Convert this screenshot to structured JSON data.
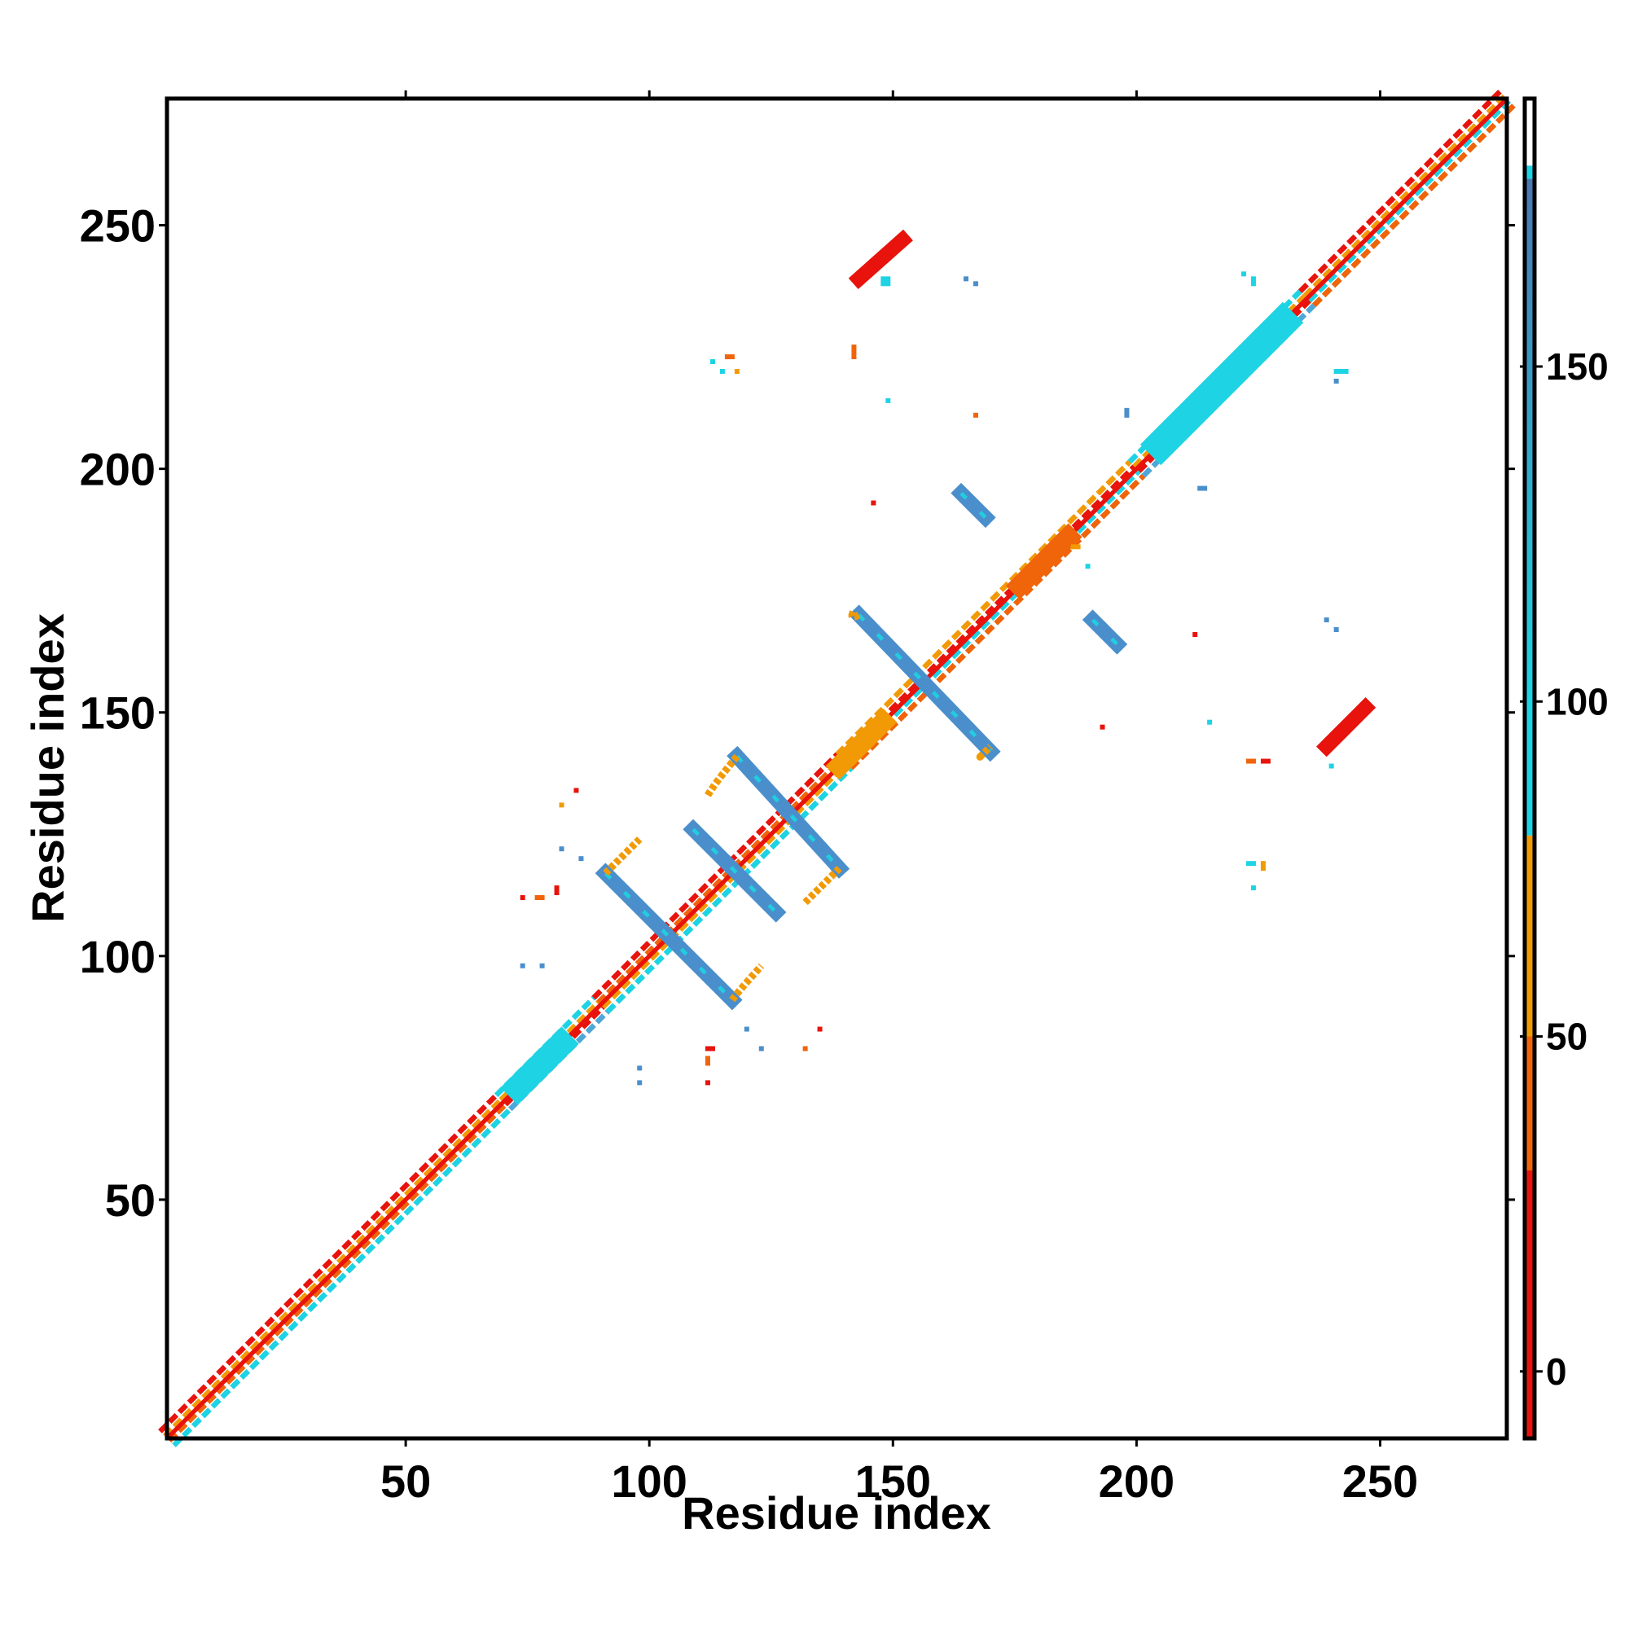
{
  "chart_data": {
    "type": "heatmap",
    "title": "",
    "xlabel": "Residue index",
    "ylabel": "Residue index",
    "xlim": [
      1,
      276
    ],
    "ylim": [
      1,
      276
    ],
    "x_ticks": [
      50,
      100,
      150,
      200,
      250
    ],
    "y_ticks": [
      50,
      100,
      150,
      200,
      250
    ],
    "colorbar": {
      "range": [
        -10,
        190
      ],
      "ticks": [
        0,
        50,
        100,
        150
      ],
      "bands": [
        {
          "from": -10,
          "to": 30,
          "color": "#e8130c"
        },
        {
          "from": 30,
          "to": 50,
          "color": "#f0640a"
        },
        {
          "from": 50,
          "to": 80,
          "color": "#f29a05"
        },
        {
          "from": 80,
          "to": 180,
          "color": "#1ed3e3"
        },
        {
          "from": 180,
          "to": 190,
          "color": "#ffffff"
        }
      ],
      "upper_gradient": {
        "from": 100,
        "to": 178,
        "start_color": "#1ed3e3",
        "end_color": "#4a78b0"
      }
    },
    "diagonal": {
      "from": 1,
      "to": 276,
      "width": 3
    },
    "diagonal_sections": [
      {
        "from": 1,
        "to": 70,
        "colors": [
          "#e8130c",
          "#f29a05",
          "#f0640a",
          "#1ed3e3"
        ]
      },
      {
        "from": 70,
        "to": 90,
        "colors": [
          "#1ed3e3",
          "#f29a05",
          "#e8130c",
          "#4fa7d8"
        ]
      },
      {
        "from": 90,
        "to": 140,
        "colors": [
          "#e8130c",
          "#f0640a",
          "#f29a05",
          "#1ed3e3"
        ]
      },
      {
        "from": 140,
        "to": 200,
        "colors": [
          "#f29a05",
          "#e8130c",
          "#1ed3e3",
          "#f0640a"
        ]
      },
      {
        "from": 200,
        "to": 235,
        "colors": [
          "#1ed3e3",
          "#f29a05",
          "#e8130c",
          "#4fa7d8"
        ]
      },
      {
        "from": 235,
        "to": 276,
        "colors": [
          "#e8130c",
          "#f29a05",
          "#1ed3e3",
          "#f0640a"
        ]
      }
    ],
    "series": [
      {
        "type": "antiparallel",
        "x1": 91,
        "y1": 117,
        "x2": 117,
        "y2": 91,
        "color": "#4a8fcc",
        "width": 3
      },
      {
        "type": "antiparallel",
        "x1": 109,
        "y1": 126,
        "x2": 126,
        "y2": 109,
        "color": "#4a8fcc",
        "width": 3
      },
      {
        "type": "antiparallel",
        "x1": 118,
        "y1": 141,
        "x2": 139,
        "y2": 118,
        "color": "#4a8fcc",
        "width": 3
      },
      {
        "type": "antiparallel",
        "x1": 143,
        "y1": 170,
        "x2": 170,
        "y2": 142,
        "color": "#4a8fcc",
        "width": 3
      },
      {
        "type": "antiparallel",
        "x1": 164,
        "y1": 195,
        "x2": 169,
        "y2": 190,
        "color": "#4a8fcc",
        "width": 3
      },
      {
        "type": "antiparallel",
        "x1": 191,
        "y1": 169,
        "x2": 196,
        "y2": 164,
        "color": "#4a8fcc",
        "width": 3
      },
      {
        "type": "parallel",
        "x1": 143,
        "y1": 239,
        "x2": 152,
        "y2": 247,
        "color": "#e8130c",
        "width": 3
      },
      {
        "type": "parallel",
        "x1": 239,
        "y1": 143,
        "x2": 247,
        "y2": 151,
        "color": "#e8130c",
        "width": 3
      },
      {
        "type": "diagonal-band",
        "x1": 73,
        "y1": 73,
        "x2": 82,
        "y2": 82,
        "color": "#1ed3e3",
        "width": 5
      },
      {
        "type": "diagonal-band",
        "x1": 205,
        "y1": 205,
        "x2": 230,
        "y2": 230,
        "color": "#1ed3e3",
        "width": 6
      },
      {
        "type": "diagonal-band",
        "x1": 176,
        "y1": 176,
        "x2": 186,
        "y2": 186,
        "color": "#f0640a",
        "width": 4
      },
      {
        "type": "diagonal-band",
        "x1": 139,
        "y1": 139,
        "x2": 148,
        "y2": 148,
        "color": "#f29a05",
        "width": 4
      },
      {
        "type": "arc",
        "x1": 112,
        "y1": 133,
        "x2": 118,
        "y2": 141,
        "color": "#f29a05",
        "width": 1.5
      },
      {
        "type": "arc",
        "x1": 132,
        "y1": 111,
        "x2": 139,
        "y2": 118,
        "color": "#f29a05",
        "width": 1.5
      },
      {
        "type": "arc",
        "x1": 91,
        "y1": 117,
        "x2": 98,
        "y2": 124,
        "color": "#f29a05",
        "width": 1.5
      },
      {
        "type": "arc",
        "x1": 117,
        "y1": 91,
        "x2": 123,
        "y2": 98,
        "color": "#f29a05",
        "width": 1.5
      },
      {
        "type": "arc",
        "x1": 143,
        "y1": 170,
        "x2": 142,
        "y2": 171,
        "color": "#f29a05",
        "width": 1.5
      },
      {
        "type": "arc",
        "x1": 168,
        "y1": 141,
        "x2": 170,
        "y2": 143,
        "color": "#f29a05",
        "width": 1.5
      }
    ],
    "points": [
      {
        "x": 148,
        "y": 238,
        "color": "#1ed3e3",
        "w": 2,
        "h": 2
      },
      {
        "x": 165,
        "y": 239,
        "color": "#4a8fcc",
        "w": 1,
        "h": 1
      },
      {
        "x": 167,
        "y": 238,
        "color": "#4a8fcc",
        "w": 1,
        "h": 1
      },
      {
        "x": 116,
        "y": 223,
        "color": "#f0640a",
        "w": 2,
        "h": 1
      },
      {
        "x": 113,
        "y": 222,
        "color": "#1ed3e3",
        "w": 1,
        "h": 1
      },
      {
        "x": 118,
        "y": 220,
        "color": "#f29a05",
        "w": 1,
        "h": 1
      },
      {
        "x": 115,
        "y": 220,
        "color": "#1ed3e3",
        "w": 1,
        "h": 1
      },
      {
        "x": 142,
        "y": 223,
        "color": "#f0640a",
        "w": 1,
        "h": 3
      },
      {
        "x": 149,
        "y": 214,
        "color": "#1ed3e3",
        "w": 1,
        "h": 1
      },
      {
        "x": 167,
        "y": 211,
        "color": "#f0640a",
        "w": 1,
        "h": 1
      },
      {
        "x": 222,
        "y": 240,
        "color": "#1ed3e3",
        "w": 1,
        "h": 1
      },
      {
        "x": 224,
        "y": 238,
        "color": "#1ed3e3",
        "w": 1,
        "h": 2
      },
      {
        "x": 241,
        "y": 220,
        "color": "#1ed3e3",
        "w": 3,
        "h": 1
      },
      {
        "x": 241,
        "y": 218,
        "color": "#4a8fcc",
        "w": 1,
        "h": 1
      },
      {
        "x": 146,
        "y": 193,
        "color": "#e8130c",
        "w": 1,
        "h": 1
      },
      {
        "x": 213,
        "y": 196,
        "color": "#4a8fcc",
        "w": 2,
        "h": 1
      },
      {
        "x": 198,
        "y": 211,
        "color": "#4a8fcc",
        "w": 1,
        "h": 2
      },
      {
        "x": 187,
        "y": 184,
        "color": "#f29a05",
        "w": 2,
        "h": 1
      },
      {
        "x": 190,
        "y": 180,
        "color": "#1ed3e3",
        "w": 1,
        "h": 1
      },
      {
        "x": 239,
        "y": 169,
        "color": "#4a8fcc",
        "w": 1,
        "h": 1
      },
      {
        "x": 241,
        "y": 167,
        "color": "#4a8fcc",
        "w": 1,
        "h": 1
      },
      {
        "x": 212,
        "y": 166,
        "color": "#e8130c",
        "w": 1,
        "h": 1
      },
      {
        "x": 215,
        "y": 148,
        "color": "#1ed3e3",
        "w": 1,
        "h": 1
      },
      {
        "x": 193,
        "y": 147,
        "color": "#e8130c",
        "w": 1,
        "h": 1
      },
      {
        "x": 223,
        "y": 140,
        "color": "#f0640a",
        "w": 2,
        "h": 1
      },
      {
        "x": 226,
        "y": 140,
        "color": "#e8130c",
        "w": 2,
        "h": 1
      },
      {
        "x": 240,
        "y": 139,
        "color": "#1ed3e3",
        "w": 1,
        "h": 1
      },
      {
        "x": 223,
        "y": 119,
        "color": "#1ed3e3",
        "w": 2,
        "h": 1
      },
      {
        "x": 226,
        "y": 118,
        "color": "#f29a05",
        "w": 1,
        "h": 2
      },
      {
        "x": 224,
        "y": 114,
        "color": "#1ed3e3",
        "w": 1,
        "h": 1
      },
      {
        "x": 85,
        "y": 134,
        "color": "#e8130c",
        "w": 1,
        "h": 1
      },
      {
        "x": 82,
        "y": 131,
        "color": "#f29a05",
        "w": 1,
        "h": 1
      },
      {
        "x": 82,
        "y": 122,
        "color": "#4a8fcc",
        "w": 1,
        "h": 1
      },
      {
        "x": 86,
        "y": 120,
        "color": "#4a8fcc",
        "w": 1,
        "h": 1
      },
      {
        "x": 74,
        "y": 112,
        "color": "#e8130c",
        "w": 1,
        "h": 1
      },
      {
        "x": 77,
        "y": 112,
        "color": "#f0640a",
        "w": 2,
        "h": 1
      },
      {
        "x": 81,
        "y": 113,
        "color": "#e8130c",
        "w": 1,
        "h": 2
      },
      {
        "x": 74,
        "y": 98,
        "color": "#4a8fcc",
        "w": 1,
        "h": 1
      },
      {
        "x": 78,
        "y": 98,
        "color": "#4a8fcc",
        "w": 1,
        "h": 1
      },
      {
        "x": 112,
        "y": 81,
        "color": "#e8130c",
        "w": 2,
        "h": 1
      },
      {
        "x": 112,
        "y": 78,
        "color": "#f0640a",
        "w": 1,
        "h": 2
      },
      {
        "x": 112,
        "y": 74,
        "color": "#e8130c",
        "w": 1,
        "h": 1
      },
      {
        "x": 98,
        "y": 77,
        "color": "#4a8fcc",
        "w": 1,
        "h": 1
      },
      {
        "x": 98,
        "y": 74,
        "color": "#4a8fcc",
        "w": 1,
        "h": 1
      },
      {
        "x": 120,
        "y": 85,
        "color": "#4a8fcc",
        "w": 1,
        "h": 1
      },
      {
        "x": 123,
        "y": 81,
        "color": "#4a8fcc",
        "w": 1,
        "h": 1
      },
      {
        "x": 132,
        "y": 81,
        "color": "#f0640a",
        "w": 1,
        "h": 1
      },
      {
        "x": 135,
        "y": 85,
        "color": "#e8130c",
        "w": 1,
        "h": 1
      }
    ]
  }
}
